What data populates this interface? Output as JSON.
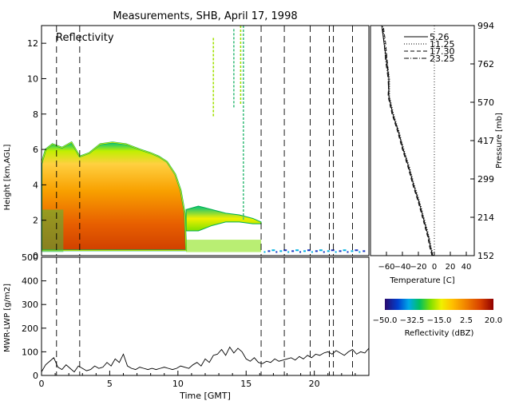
{
  "figure": {
    "title": "Measurements, SHB, April 17, 1998"
  },
  "chart_data": [
    {
      "type": "heatmap",
      "panel": "reflectivity",
      "annotation": "Reflectivity",
      "xlabel": "",
      "ylabel": "Height [km,AGL]",
      "xlim": [
        0,
        24
      ],
      "ylim": [
        0,
        13
      ],
      "yticks": [
        "0",
        "2",
        "4",
        "6",
        "8",
        "10",
        "12"
      ],
      "dashed_times": [
        1.1,
        2.8,
        16.1,
        17.8,
        19.7,
        21.1,
        21.4,
        22.8
      ],
      "cloud_regions": [
        {
          "name": "main-echo",
          "x": [
            0.0,
            0.3,
            0.8,
            1.5,
            2.2,
            2.8,
            3.5,
            4.3,
            5.2,
            6.2,
            7.2,
            8.0,
            8.6,
            9.2,
            9.8,
            10.2,
            10.5,
            10.6
          ],
          "top": [
            5.2,
            6.0,
            6.3,
            6.1,
            6.4,
            5.6,
            5.8,
            6.3,
            6.4,
            6.3,
            6.0,
            5.8,
            5.6,
            5.3,
            4.6,
            3.7,
            2.4,
            0.4
          ]
        },
        {
          "name": "trailing-layer",
          "x": [
            10.6,
            11.5,
            12.5,
            13.5,
            14.5,
            15.5,
            16.1
          ],
          "top": [
            2.6,
            2.8,
            2.6,
            2.4,
            2.3,
            2.1,
            1.9
          ],
          "bottom": [
            1.4,
            1.4,
            1.7,
            1.9,
            1.9,
            1.8,
            1.8
          ]
        },
        {
          "name": "upper-streaks",
          "x": [
            12.6,
            14.1,
            14.6,
            14.8
          ],
          "top": [
            12.3,
            12.8,
            13.0,
            13.0
          ]
        }
      ],
      "colorbar": {
        "ticks": [
          "−50.0",
          "−32.5",
          "−15.0",
          "2.5",
          "20.0"
        ],
        "label": "Reflectivity (dBZ)",
        "range": [
          -50,
          20
        ]
      }
    },
    {
      "type": "line",
      "panel": "lwp",
      "xlabel": "Time [GMT]",
      "ylabel": "MWR-LWP [g/m2]",
      "xlim": [
        0,
        24
      ],
      "ylim": [
        0,
        500
      ],
      "xticks": [
        "0",
        "5",
        "10",
        "15",
        "20"
      ],
      "yticks": [
        "0",
        "100",
        "200",
        "300",
        "400",
        "500"
      ],
      "series": [
        {
          "x": [
            0.0,
            0.3,
            0.6,
            0.9,
            1.2,
            1.5,
            1.8,
            2.1,
            2.4,
            2.7,
            3.0,
            3.3,
            3.6,
            3.9,
            4.2,
            4.5,
            4.8,
            5.1,
            5.4,
            5.7,
            6.0,
            6.3,
            6.6,
            6.9,
            7.2,
            7.5,
            7.8,
            8.1,
            8.4,
            8.7,
            9.0,
            9.3,
            9.6,
            9.9,
            10.2,
            10.5,
            10.8,
            11.1,
            11.4,
            11.7,
            12.0,
            12.3,
            12.6,
            12.9,
            13.2,
            13.5,
            13.8,
            14.1,
            14.4,
            14.7,
            15.0,
            15.3,
            15.6,
            15.9,
            16.2,
            16.5,
            16.8,
            17.1,
            17.4,
            17.7,
            18.0,
            18.3,
            18.6,
            18.9,
            19.2,
            19.5,
            19.8,
            20.1,
            20.4,
            20.7,
            21.0,
            21.3,
            21.6,
            21.9,
            22.2,
            22.5,
            22.8,
            23.1,
            23.4,
            23.7,
            24.0
          ],
          "y": [
            15,
            45,
            60,
            75,
            35,
            25,
            45,
            30,
            15,
            40,
            30,
            20,
            25,
            40,
            30,
            35,
            55,
            40,
            70,
            55,
            90,
            40,
            30,
            25,
            35,
            30,
            25,
            30,
            25,
            30,
            35,
            30,
            25,
            30,
            40,
            35,
            30,
            45,
            55,
            40,
            70,
            55,
            85,
            90,
            110,
            85,
            120,
            95,
            115,
            100,
            70,
            60,
            75,
            55,
            50,
            60,
            55,
            70,
            60,
            65,
            70,
            75,
            65,
            80,
            70,
            85,
            75,
            90,
            85,
            95,
            100,
            90,
            105,
            95,
            85,
            100,
            110,
            90,
            100,
            95,
            115
          ]
        }
      ],
      "dashed_times": [
        1.1,
        2.8,
        16.1,
        17.8,
        19.7,
        21.1,
        21.4,
        22.8
      ]
    },
    {
      "type": "line",
      "panel": "temperature-profile",
      "xlabel": "Temperature [C]",
      "ylabel_right": "Pressure [mb]",
      "xticks": [
        "−60",
        "−40",
        "−20",
        "0",
        "20",
        "40"
      ],
      "xlim": [
        -80,
        50
      ],
      "pressure_ticks": [
        "152",
        "214",
        "299",
        "417",
        "570",
        "762",
        "994"
      ],
      "height_range_km": [
        0,
        13
      ],
      "series": [
        {
          "name": "5.26",
          "style": "solid",
          "height": [
            0,
            0.5,
            1,
            2,
            3,
            4,
            5,
            6,
            7,
            8,
            9,
            10,
            11,
            12,
            13
          ],
          "temp": [
            -2,
            -5,
            -7,
            -13,
            -19,
            -26,
            -32,
            -39,
            -45,
            -52,
            -57,
            -57,
            -60,
            -63,
            -66
          ]
        },
        {
          "name": "11.25",
          "style": "dotted",
          "height": [
            0,
            0.5,
            1,
            2,
            3,
            4,
            5,
            6,
            7,
            8,
            9,
            10,
            11,
            12,
            13
          ],
          "temp": [
            -1,
            -4,
            -6,
            -12,
            -18,
            -25,
            -31,
            -38,
            -44,
            -51,
            -56,
            -56,
            -59,
            -62,
            -65
          ]
        },
        {
          "name": "17.30",
          "style": "dashed",
          "height": [
            0,
            0.5,
            1,
            2,
            3,
            4,
            5,
            6,
            7,
            8,
            9,
            10,
            11,
            12,
            13
          ],
          "temp": [
            -3,
            -6,
            -8,
            -14,
            -20,
            -27,
            -33,
            -40,
            -46,
            -53,
            -58,
            -57,
            -59,
            -61,
            -64
          ]
        },
        {
          "name": "23.25",
          "style": "dashdot",
          "height": [
            0,
            0.5,
            1,
            2,
            3,
            4,
            5,
            6,
            7,
            8,
            9,
            10,
            11,
            12,
            13
          ],
          "temp": [
            -2,
            -5,
            -7,
            -13,
            -19,
            -26,
            -32,
            -39,
            -45,
            -52,
            -57,
            -58,
            -61,
            -63,
            -65
          ]
        }
      ],
      "reference_line_temp": 0
    }
  ]
}
